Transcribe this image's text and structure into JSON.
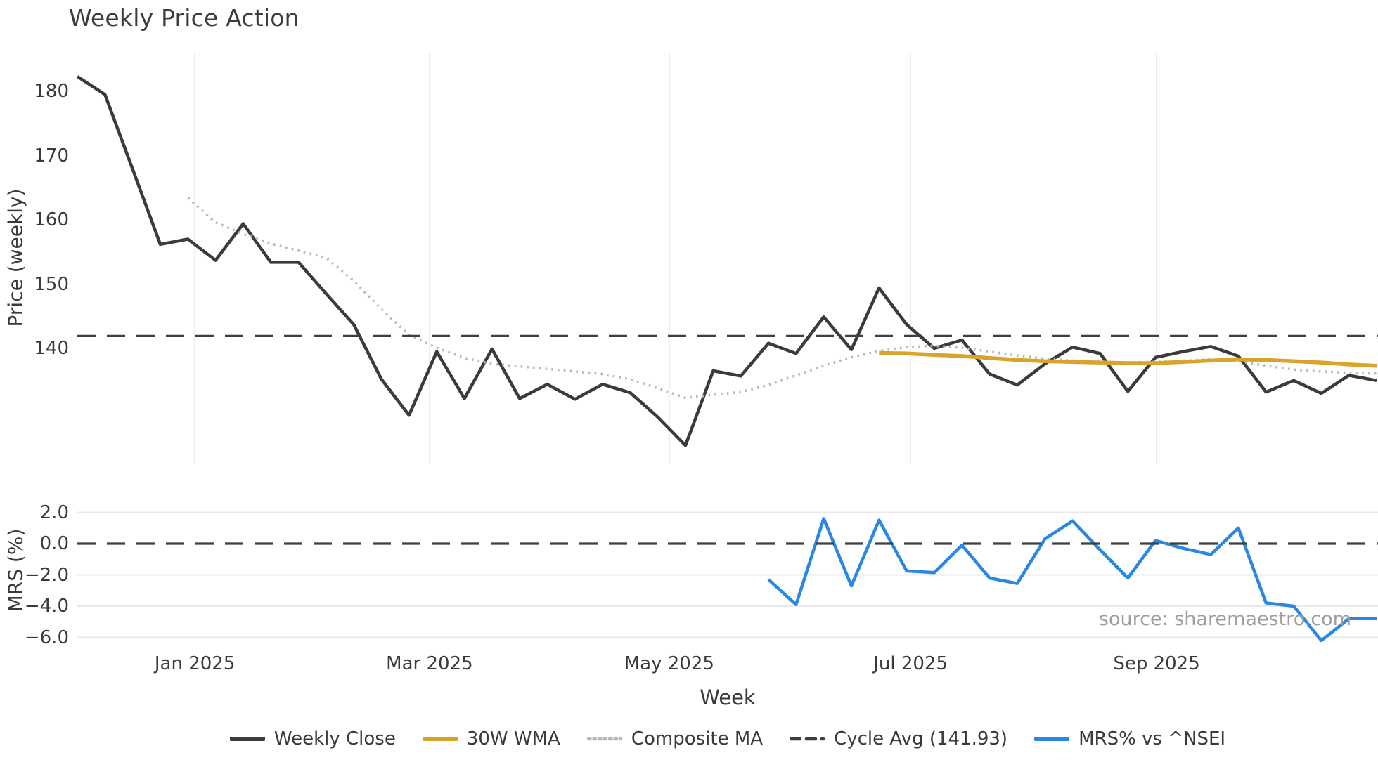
{
  "watermark": "source: sharemaestro.com",
  "colors": {
    "weekly_close": "#3b3b3b",
    "wma_30": "#d9a428",
    "composite_ma": "#b7b7b7",
    "cycle_avg": "#3f3f3f",
    "mrs": "#2a87e2",
    "grid_vertical": "#e9ecf3",
    "grid_horizontal": "#e9e9ed",
    "text": "#3a3a3a",
    "watermark": "#9e9e9e"
  },
  "legend": [
    {
      "label": "Weekly Close",
      "color": "#3b3b3b",
      "style": "solid"
    },
    {
      "label": "30W WMA",
      "color": "#d9a428",
      "style": "solid"
    },
    {
      "label": "Composite MA",
      "color": "#b7b7b7",
      "style": "dotted"
    },
    {
      "label": "Cycle Avg (141.93)",
      "color": "#3f3f3f",
      "style": "dashed"
    },
    {
      "label": "MRS% vs ^NSEI",
      "color": "#2a87e2",
      "style": "solid"
    }
  ],
  "chart_data": {
    "type": "line",
    "title": "Weekly Price Action",
    "xlabel": "Week",
    "x_unit": "week_index",
    "x_ticks": [
      {
        "label": "Jan 2025",
        "week": 4.25
      },
      {
        "label": "Mar 2025",
        "week": 12.74
      },
      {
        "label": "May 2025",
        "week": 21.41
      },
      {
        "label": "Jul 2025",
        "week": 30.14
      },
      {
        "label": "Sep 2025",
        "week": 39.04
      }
    ],
    "panels": [
      {
        "id": "price",
        "ylabel": "Price (weekly)",
        "yticks": [
          180,
          170,
          160,
          150,
          140
        ],
        "ylim": [
          122.0,
          186.0
        ],
        "grid": "vertical"
      },
      {
        "id": "mrs",
        "ylabel": "MRS (%)",
        "yticks": [
          2.0,
          0.0,
          -2.0,
          -4.0,
          -6.0
        ],
        "ylim": [
          -6.8,
          3.3
        ],
        "grid": "horizontal"
      }
    ],
    "legend_position": "bottom-center",
    "series": [
      {
        "name": "Weekly Close",
        "panel": "price",
        "color": "#3b3b3b",
        "style": "solid",
        "width": 4.5,
        "start_week": 0,
        "values": [
          182.3,
          179.5,
          167.9,
          156.2,
          157.0,
          153.7,
          159.4,
          153.4,
          153.4,
          148.5,
          143.7,
          135.2,
          129.6,
          139.5,
          132.2,
          139.9,
          132.2,
          134.4,
          132.1,
          134.4,
          133.1,
          129.3,
          124.9,
          136.5,
          135.7,
          140.8,
          139.2,
          144.9,
          139.8,
          149.4,
          143.7,
          140.0,
          141.3,
          136.0,
          134.3,
          137.6,
          140.2,
          139.2,
          133.3,
          138.6,
          139.5,
          140.3,
          138.8,
          133.2,
          135.0,
          133.0,
          135.8,
          135.0
        ]
      },
      {
        "name": "Composite MA",
        "panel": "price",
        "color": "#b7b7b7",
        "style": "dotted",
        "width": 3.6,
        "start_week": 4,
        "values": [
          163.4,
          159.6,
          157.8,
          156.3,
          155.2,
          154.1,
          150.5,
          146.1,
          142.1,
          140.1,
          138.5,
          137.6,
          137.2,
          136.8,
          136.4,
          136.0,
          135.2,
          133.8,
          132.3,
          132.8,
          133.2,
          134.3,
          135.8,
          137.3,
          138.6,
          139.6,
          140.2,
          140.4,
          140.1,
          139.5,
          138.9,
          138.4,
          138.1,
          137.9,
          137.8,
          137.9,
          138.1,
          138.3,
          138.0,
          137.3,
          136.7,
          136.4,
          136.2,
          136.1
        ]
      },
      {
        "name": "30W WMA",
        "panel": "price",
        "color": "#d9a428",
        "style": "solid",
        "width": 5.5,
        "start_week": 29,
        "values": [
          139.3,
          139.2,
          139.0,
          138.8,
          138.5,
          138.2,
          138.0,
          137.9,
          137.8,
          137.7,
          137.7,
          137.9,
          138.1,
          138.3,
          138.2,
          138.0,
          137.8,
          137.5,
          137.3
        ]
      },
      {
        "name": "Cycle Avg",
        "panel": "price",
        "color": "#3f3f3f",
        "style": "dashed",
        "width": 3.2,
        "constant": 141.93
      },
      {
        "name": "MRS% vs ^NSEI",
        "panel": "mrs",
        "color": "#2a87e2",
        "style": "solid",
        "width": 4.5,
        "start_week": 25,
        "values": [
          -2.3,
          -3.9,
          1.6,
          -2.7,
          1.5,
          -1.75,
          -1.85,
          -0.1,
          -2.2,
          -2.55,
          0.3,
          1.45,
          -0.4,
          -2.2,
          0.2,
          -0.3,
          -0.7,
          1.0,
          -3.8,
          -4.0,
          -6.2,
          -4.8,
          -4.8
        ]
      },
      {
        "name": "Zero Line",
        "panel": "mrs",
        "color": "#3f3f3f",
        "style": "dashed",
        "width": 3.2,
        "constant": 0.0
      }
    ]
  }
}
